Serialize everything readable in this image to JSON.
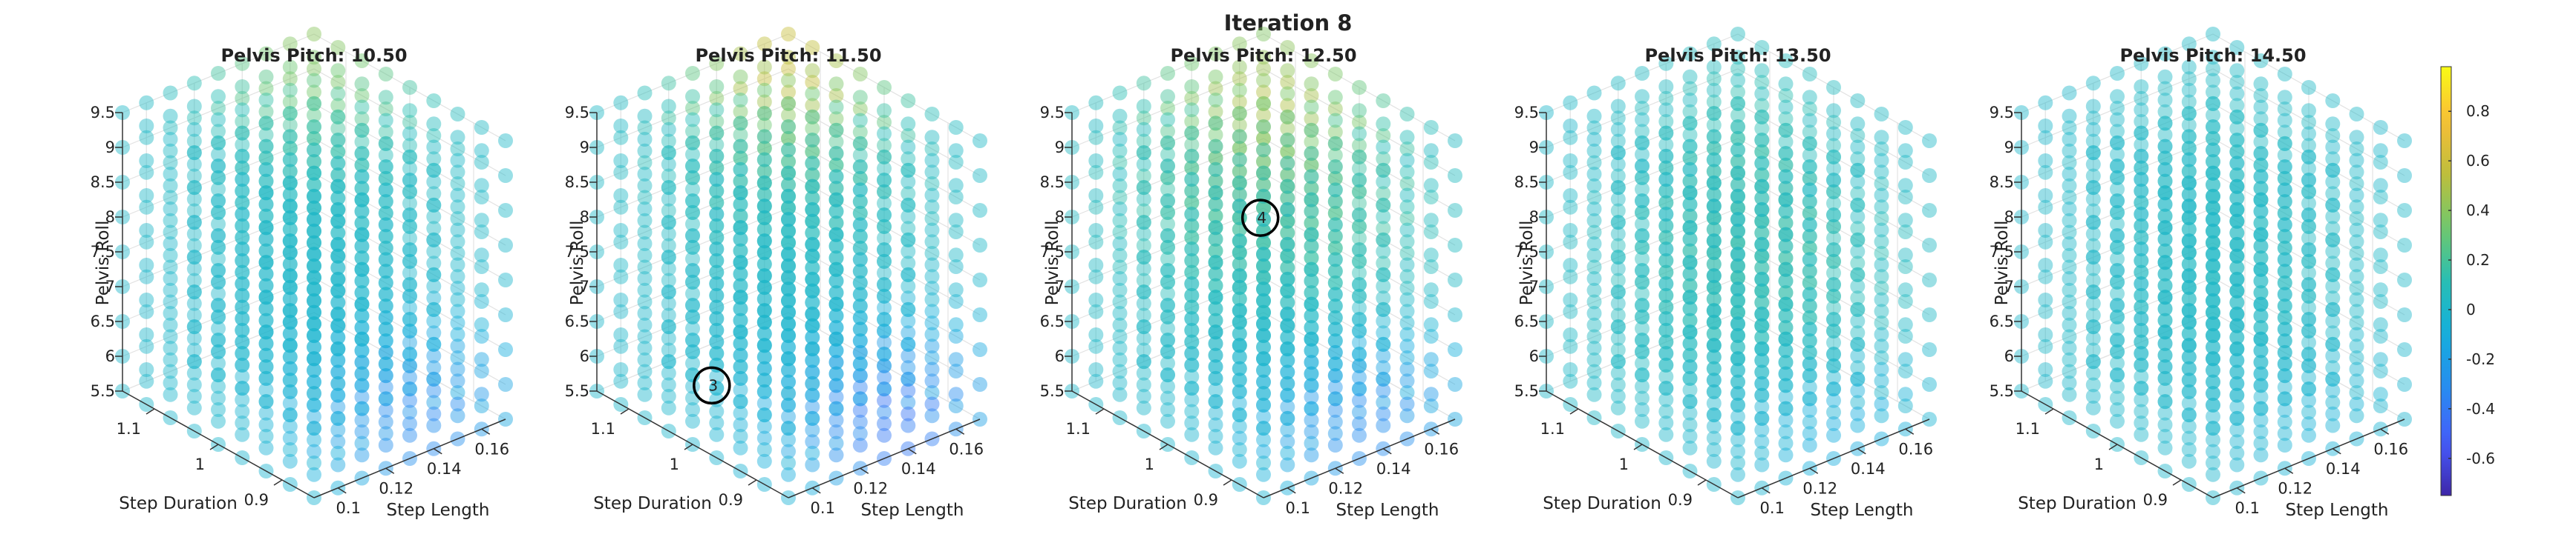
{
  "figure": {
    "title": "Iteration 8"
  },
  "axes_labels": {
    "x": "Step Length",
    "y": "Step Duration",
    "z": "Pelvis Roll"
  },
  "colorbar": {
    "min": -0.75,
    "max": 0.98,
    "ticks": [
      "0.8",
      "0.6",
      "0.4",
      "0.2",
      "0",
      "-0.2",
      "-0.4",
      "-0.6"
    ],
    "tick_values": [
      0.8,
      0.6,
      0.4,
      0.2,
      0,
      -0.2,
      -0.4,
      -0.6
    ],
    "colormap": "parula"
  },
  "chart_data": {
    "type": "scatter",
    "subtype": "3d-scatter-small-multiples",
    "marker_alpha": 0.45,
    "x_ticks": [
      "0.1",
      "0.12",
      "0.14",
      "0.16"
    ],
    "x_tick_values": [
      0.1,
      0.12,
      0.14,
      0.16
    ],
    "xlim": [
      0.09,
      0.17
    ],
    "y_ticks": [
      "0.9",
      "1",
      "1.1"
    ],
    "y_tick_values": [
      0.9,
      1.0,
      1.1
    ],
    "ylim": [
      0.85,
      1.15
    ],
    "z_ticks": [
      "5.5",
      "6",
      "6.5",
      "7",
      "7.5",
      "8",
      "8.5",
      "9",
      "9.5"
    ],
    "z_tick_values": [
      5.5,
      6,
      6.5,
      7,
      7.5,
      8,
      8.5,
      9,
      9.5
    ],
    "zlim": [
      5.5,
      9.5
    ],
    "grid": true,
    "panels": [
      {
        "title": "Pelvis Pitch: 10.50",
        "pitch": 10.5,
        "peak": {
          "x": 0.17,
          "y": 1.15,
          "z": 9.5,
          "value": 0.4
        },
        "low": {
          "x": 0.14,
          "y": 0.87,
          "z": 5.8,
          "value": -0.35
        },
        "marker": null
      },
      {
        "title": "Pelvis Pitch: 11.50",
        "pitch": 11.5,
        "peak": {
          "x": 0.17,
          "y": 1.15,
          "z": 9.2,
          "value": 0.6
        },
        "low": {
          "x": 0.14,
          "y": 0.87,
          "z": 5.8,
          "value": -0.45
        },
        "marker": {
          "label": "3",
          "x": 0.09,
          "y": 0.97,
          "z": 6.5
        }
      },
      {
        "title": "Pelvis Pitch: 12.50",
        "pitch": 12.5,
        "peak": {
          "x": 0.16,
          "y": 1.1,
          "z": 8.5,
          "value": 0.55
        },
        "low": {
          "x": 0.14,
          "y": 0.87,
          "z": 5.8,
          "value": -0.35
        },
        "marker": {
          "label": "4",
          "x": 0.15,
          "y": 1.08,
          "z": 7.5
        }
      },
      {
        "title": "Pelvis Pitch: 13.50",
        "pitch": 13.5,
        "peak": {
          "x": 0.16,
          "y": 1.08,
          "z": 7.2,
          "value": 0.3
        },
        "low": {
          "x": 0.14,
          "y": 0.87,
          "z": 5.8,
          "value": -0.15
        },
        "marker": null
      },
      {
        "title": "Pelvis Pitch: 14.50",
        "pitch": 14.5,
        "peak": {
          "x": 0.16,
          "y": 1.08,
          "z": 7.2,
          "value": 0.12
        },
        "low": {
          "x": 0.14,
          "y": 0.87,
          "z": 5.8,
          "value": -0.08
        },
        "marker": null
      }
    ]
  }
}
